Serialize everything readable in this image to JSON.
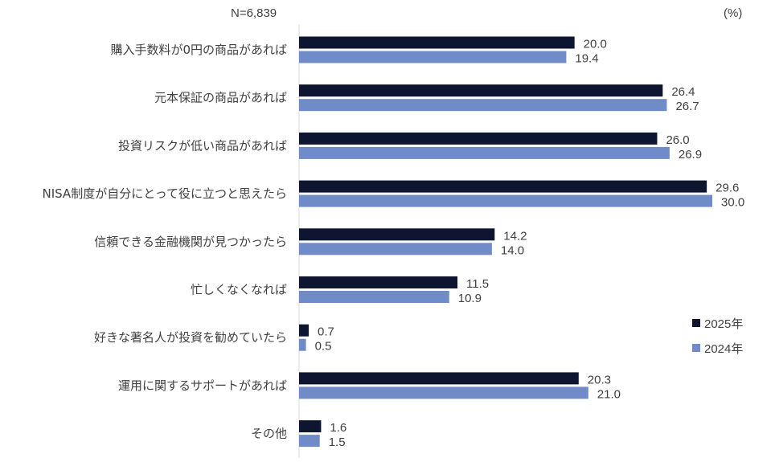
{
  "chart_data": {
    "type": "bar",
    "orientation": "horizontal",
    "sample_size": "N=6,839",
    "unit": "(%)",
    "categories": [
      "購入手数料が0円の商品があれば",
      "元本保証の商品があれば",
      "投資リスクが低い商品があれば",
      "NISA制度が自分にとって役に立つと思えたら",
      "信頼できる金融機関が見つかったら",
      "忙しくなくなれば",
      "好きな著名人が投資を勧めていたら",
      "運用に関するサポートがあれば",
      "その他"
    ],
    "series": [
      {
        "name": "2025年",
        "color": "#0d1530",
        "values": [
          20.0,
          26.4,
          26.0,
          29.6,
          14.2,
          11.5,
          0.7,
          20.3,
          1.6
        ]
      },
      {
        "name": "2024年",
        "color": "#6f8cc8",
        "values": [
          19.4,
          26.7,
          26.9,
          30.0,
          14.0,
          10.9,
          0.5,
          21.0,
          1.5
        ]
      }
    ],
    "xlim": [
      0,
      30
    ],
    "grid": false,
    "legend_position": "right"
  }
}
